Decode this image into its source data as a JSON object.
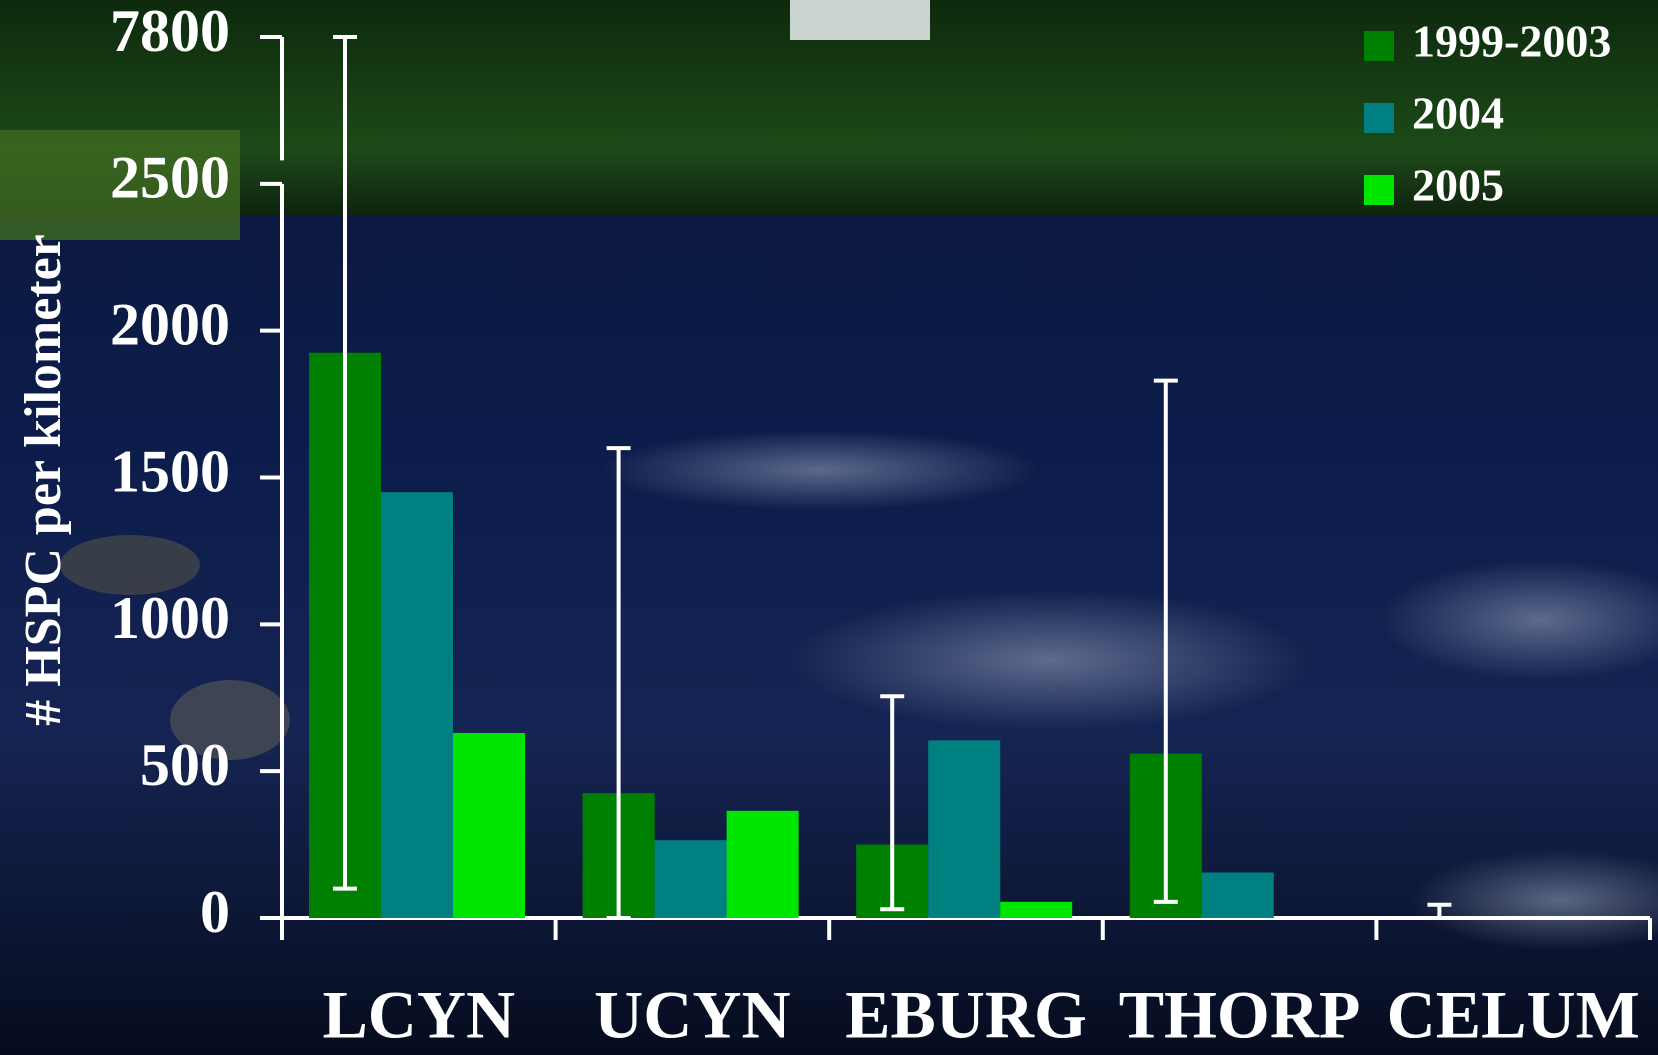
{
  "chart_data": {
    "type": "bar",
    "y_label": "# HSPC per kilometer",
    "categories": [
      "LCYN",
      "UCYN",
      "EBURG",
      "THORP",
      "CELUM"
    ],
    "series": [
      {
        "name": "1999-2003",
        "color": "#008000",
        "values": [
          1925,
          425,
          250,
          560,
          0
        ],
        "error_low": [
          100,
          0,
          30,
          55,
          0
        ],
        "error_high": [
          7800,
          1600,
          755,
          1830,
          45
        ]
      },
      {
        "name": "2004",
        "color": "#008080",
        "values": [
          1450,
          265,
          605,
          155,
          null
        ]
      },
      {
        "name": "2005",
        "color": "#00e600",
        "values": [
          630,
          365,
          55,
          null,
          null
        ]
      }
    ],
    "ylim": [
      0,
      7800
    ],
    "yticks": [
      0,
      500,
      1000,
      1500,
      2000,
      2500,
      7800
    ],
    "axis_break": true,
    "grid": false,
    "legend": "top-right"
  }
}
